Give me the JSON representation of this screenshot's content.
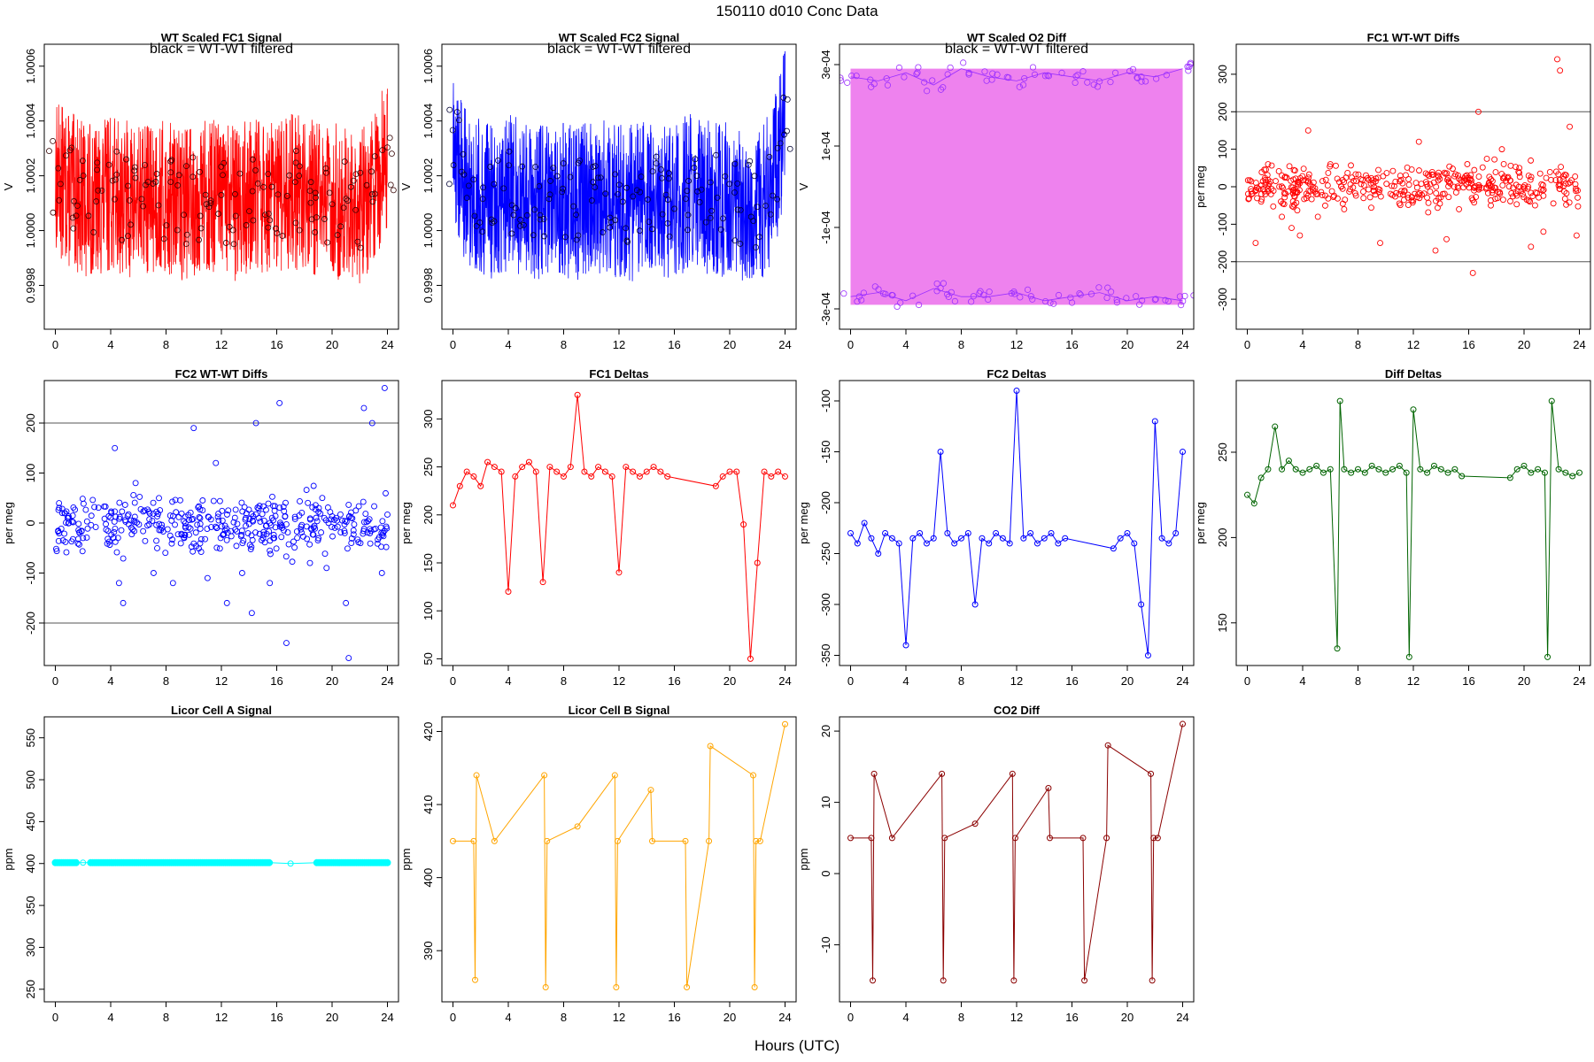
{
  "figure": {
    "title": "150110    d010    Conc Data",
    "xlabel": "Hours (UTC)"
  },
  "chart_data": [
    {
      "id": "fc1-signal",
      "type": "line",
      "title": "WT Scaled FC1 Signal",
      "ylabel": "V",
      "annotation": "black = WT-WT filtered",
      "color": "#ff0000",
      "marker_color": "#330000",
      "xlim": [
        -0.8,
        24.8
      ],
      "ylim": [
        0.99964,
        1.00068
      ],
      "xticks": [
        0,
        4,
        8,
        12,
        16,
        20,
        24
      ],
      "yticks": [
        0.9998,
        1.0,
        1.0002,
        1.0004,
        1.0006
      ],
      "yticklabels": [
        "0.9998",
        "1.0000",
        "1.0002",
        "1.0004",
        "1.0006"
      ],
      "series": [
        {
          "x": [
            0,
            1,
            2,
            3,
            4,
            5,
            6,
            7,
            8,
            9,
            10,
            11,
            12,
            13,
            14,
            15,
            16,
            17,
            18,
            19,
            20,
            21,
            22,
            23,
            24
          ],
          "y": [
            1.0002,
            1.00015,
            1.00012,
            1.0001,
            1.00014,
            1.00012,
            1.0001,
            1.00013,
            1.00011,
            1.0001,
            1.00012,
            1.00013,
            1.00011,
            1.0001,
            1.00012,
            1.00012,
            1.0001,
            1.00015,
            1.00013,
            1.00012,
            1.00011,
            1.0001,
            1.00008,
            1.00015,
            1.0003
          ]
        }
      ]
    },
    {
      "id": "fc2-signal",
      "type": "line",
      "title": "WT Scaled FC2 Signal",
      "ylabel": "V",
      "annotation": "black = WT-WT filtered",
      "color": "#0000ff",
      "marker_color": "#000033",
      "xlim": [
        -0.8,
        24.8
      ],
      "ylim": [
        0.99964,
        1.00068
      ],
      "xticks": [
        0,
        4,
        8,
        12,
        16,
        20,
        24
      ],
      "yticks": [
        0.9998,
        1.0,
        1.0002,
        1.0004,
        1.0006
      ],
      "yticklabels": [
        "0.9998",
        "1.0000",
        "1.0002",
        "1.0004",
        "1.0006"
      ],
      "series": [
        {
          "x": [
            0,
            1,
            2,
            3,
            4,
            5,
            6,
            7,
            8,
            9,
            10,
            11,
            12,
            13,
            14,
            15,
            16,
            17,
            18,
            19,
            20,
            21,
            22,
            23,
            24
          ],
          "y": [
            1.0003,
            1.00015,
            1.00012,
            1.0001,
            1.00014,
            1.00012,
            1.0001,
            1.00013,
            1.00011,
            1.0001,
            1.00012,
            1.00013,
            1.00011,
            1.0001,
            1.00012,
            1.00012,
            1.0001,
            1.00015,
            1.00013,
            1.00012,
            1.00011,
            1.0001,
            1.00008,
            1.00015,
            1.0004
          ]
        }
      ]
    },
    {
      "id": "o2-diff",
      "type": "line",
      "title": "WT Scaled O2 Diff",
      "ylabel": "V",
      "annotation": "black = WT-WT filtered",
      "color": "#ee82ee",
      "marker_color": "#9b30ff",
      "xlim": [
        -0.8,
        24.8
      ],
      "ylim": [
        -0.00035,
        0.00035
      ],
      "xticks": [
        0,
        4,
        8,
        12,
        16,
        20,
        24
      ],
      "yticks": [
        -0.0003,
        -0.0001,
        0.0001,
        0.0003
      ],
      "yticklabels": [
        "-3e-04",
        "-1e-04",
        "1e-04",
        "3e-04"
      ],
      "series": [
        {
          "name": "",
          "x": [
            0,
            2,
            4,
            6,
            8,
            10,
            12,
            14,
            16,
            18,
            20,
            22,
            24
          ],
          "y": [
            0.00027,
            0.00026,
            0.00028,
            0.00025,
            0.00029,
            0.00027,
            0.00026,
            0.00028,
            0.00027,
            0.00026,
            0.00028,
            0.00027,
            0.00029
          ]
        },
        {
          "name": "",
          "x": [
            0,
            2,
            4,
            6,
            8,
            10,
            12,
            14,
            16,
            18,
            20,
            22,
            24
          ],
          "y": [
            -0.00027,
            -0.00026,
            -0.00028,
            -0.00025,
            -0.00027,
            -0.00027,
            -0.00026,
            -0.00028,
            -0.00027,
            -0.00026,
            -0.00028,
            -0.00027,
            -0.00028
          ]
        }
      ]
    },
    {
      "id": "fc1-wtwt",
      "type": "scatter",
      "title": "FC1 WT-WT Diffs",
      "ylabel": "per meg",
      "color": "#ff0000",
      "xlim": [
        -0.8,
        24.8
      ],
      "ylim": [
        -380,
        380
      ],
      "xticks": [
        0,
        4,
        8,
        12,
        16,
        20,
        24
      ],
      "yticks": [
        -300,
        -200,
        -100,
        0,
        100,
        200,
        300
      ],
      "hlines": [
        -200,
        200
      ],
      "series": [
        {
          "x": [
            0.3,
            0.6,
            1.5,
            2.5,
            3.2,
            3.8,
            4.4,
            5.1,
            6.0,
            7.0,
            8.2,
            9.6,
            11.0,
            12.4,
            13.6,
            14.4,
            15.3,
            16.3,
            16.7,
            17.6,
            18.4,
            19.6,
            20.5,
            21.4,
            22.4,
            22.6,
            23.3,
            23.8
          ],
          "y": [
            -20,
            -150,
            60,
            30,
            -110,
            -130,
            150,
            -80,
            60,
            -60,
            20,
            -150,
            -20,
            120,
            -170,
            -140,
            -60,
            -230,
            200,
            -50,
            100,
            40,
            -160,
            -120,
            340,
            310,
            160,
            -130
          ]
        }
      ]
    },
    {
      "id": "fc2-wtwt",
      "type": "scatter",
      "title": "FC2 WT-WT Diffs",
      "ylabel": "per meg",
      "color": "#0000ff",
      "xlim": [
        -0.8,
        24.8
      ],
      "ylim": [
        -285,
        285
      ],
      "xticks": [
        0,
        4,
        8,
        12,
        16,
        20,
        24
      ],
      "yticks": [
        -200,
        -100,
        0,
        100,
        200
      ],
      "hlines": [
        -200,
        200
      ],
      "series": [
        {
          "x": [
            0.5,
            2.0,
            4.3,
            4.6,
            4.9,
            5.8,
            7.1,
            8.5,
            10.0,
            11.0,
            11.6,
            12.4,
            13.5,
            14.2,
            14.5,
            15.5,
            16.2,
            16.7,
            18.4,
            19.6,
            21.0,
            21.2,
            22.3,
            22.9,
            23.6,
            23.8
          ],
          "y": [
            20,
            -30,
            150,
            -120,
            -160,
            80,
            -100,
            -120,
            190,
            -110,
            120,
            -160,
            -100,
            -180,
            200,
            -120,
            240,
            -240,
            -80,
            -90,
            -160,
            -270,
            230,
            200,
            -100,
            270
          ]
        }
      ]
    },
    {
      "id": "fc1-deltas",
      "type": "line",
      "title": "FC1 Deltas",
      "ylabel": "per meg",
      "color": "#ff0000",
      "xlim": [
        -0.8,
        24.8
      ],
      "ylim": [
        43,
        340
      ],
      "xticks": [
        0,
        4,
        8,
        12,
        16,
        20,
        24
      ],
      "yticks": [
        50,
        100,
        150,
        200,
        250,
        300
      ],
      "series": [
        {
          "x": [
            0,
            0.5,
            1,
            1.5,
            2,
            2.5,
            3,
            3.5,
            4,
            4.5,
            5,
            5.5,
            6,
            6.5,
            7,
            7.5,
            8,
            8.5,
            9,
            9.5,
            10,
            10.5,
            11,
            11.5,
            12,
            12.5,
            13,
            13.5,
            14,
            14.5,
            15,
            15.5,
            19,
            19.5,
            20,
            20.5,
            21,
            21.5,
            22,
            22.5,
            23,
            23.5,
            24
          ],
          "y": [
            210,
            230,
            245,
            240,
            230,
            255,
            250,
            245,
            120,
            240,
            250,
            255,
            245,
            130,
            250,
            245,
            240,
            250,
            325,
            245,
            240,
            250,
            245,
            240,
            140,
            250,
            245,
            240,
            245,
            250,
            245,
            240,
            230,
            240,
            245,
            245,
            190,
            50,
            150,
            245,
            240,
            245,
            240
          ]
        }
      ]
    },
    {
      "id": "fc2-deltas",
      "type": "line",
      "title": "FC2 Deltas",
      "ylabel": "per meg",
      "color": "#0000ff",
      "xlim": [
        -0.8,
        24.8
      ],
      "ylim": [
        -360,
        -80
      ],
      "xticks": [
        0,
        4,
        8,
        12,
        16,
        20,
        24
      ],
      "yticks": [
        -350,
        -300,
        -250,
        -200,
        -150,
        -100
      ],
      "series": [
        {
          "x": [
            0,
            0.5,
            1,
            1.5,
            2,
            2.5,
            3,
            3.5,
            4,
            4.5,
            5,
            5.5,
            6,
            6.5,
            7,
            7.5,
            8,
            8.5,
            9,
            9.5,
            10,
            10.5,
            11,
            11.5,
            12,
            12.5,
            13,
            13.5,
            14,
            14.5,
            15,
            15.5,
            19,
            19.5,
            20,
            20.5,
            21,
            21.5,
            22,
            22.5,
            23,
            23.5,
            24
          ],
          "y": [
            -230,
            -240,
            -220,
            -235,
            -250,
            -230,
            -235,
            -240,
            -340,
            -235,
            -230,
            -240,
            -235,
            -150,
            -230,
            -240,
            -235,
            -230,
            -300,
            -235,
            -240,
            -230,
            -235,
            -240,
            -90,
            -235,
            -230,
            -240,
            -235,
            -230,
            -240,
            -235,
            -245,
            -235,
            -230,
            -240,
            -300,
            -350,
            -120,
            -235,
            -240,
            -230,
            -150
          ]
        }
      ]
    },
    {
      "id": "diff-deltas",
      "type": "line",
      "title": "Diff Deltas",
      "ylabel": "per meg",
      "color": "#006400",
      "xlim": [
        -0.8,
        24.8
      ],
      "ylim": [
        125,
        292
      ],
      "xticks": [
        0,
        4,
        8,
        12,
        16,
        20,
        24
      ],
      "yticks": [
        150,
        200,
        250
      ],
      "series": [
        {
          "x": [
            0,
            0.5,
            1,
            1.5,
            2,
            2.5,
            3,
            3.5,
            4,
            4.5,
            5,
            5.5,
            6,
            6.5,
            6.7,
            7,
            7.5,
            8,
            8.5,
            9,
            9.5,
            10,
            10.5,
            11,
            11.5,
            11.7,
            12,
            12.5,
            13,
            13.5,
            14,
            14.5,
            15,
            15.5,
            19,
            19.5,
            20,
            20.5,
            21,
            21.5,
            21.7,
            22,
            22.5,
            23,
            23.5,
            24
          ],
          "y": [
            225,
            220,
            235,
            240,
            265,
            240,
            245,
            240,
            238,
            240,
            242,
            238,
            240,
            135,
            280,
            240,
            238,
            240,
            238,
            242,
            240,
            238,
            240,
            242,
            238,
            130,
            275,
            240,
            238,
            242,
            240,
            238,
            240,
            236,
            235,
            240,
            242,
            238,
            240,
            238,
            130,
            280,
            240,
            238,
            236,
            238
          ]
        }
      ]
    },
    {
      "id": "licor-a",
      "type": "line",
      "title": "Licor Cell A Signal",
      "ylabel": "ppm",
      "color": "#00ffff",
      "xlim": [
        -0.8,
        24.8
      ],
      "ylim": [
        235,
        575
      ],
      "xticks": [
        0,
        4,
        8,
        12,
        16,
        20,
        24
      ],
      "yticks": [
        250,
        300,
        350,
        400,
        450,
        500,
        550
      ],
      "series": [
        {
          "x": [
            0,
            2,
            4,
            6,
            8,
            10,
            12,
            14,
            15.5,
            17,
            19,
            20,
            22,
            24
          ],
          "y": [
            401,
            401,
            401,
            401,
            401,
            401,
            401,
            401,
            401,
            400,
            401,
            401,
            401,
            401
          ]
        }
      ]
    },
    {
      "id": "licor-b",
      "type": "line",
      "title": "Licor Cell B Signal",
      "ylabel": "ppm",
      "color": "#ffa500",
      "xlim": [
        -0.8,
        24.8
      ],
      "ylim": [
        383,
        422
      ],
      "xticks": [
        0,
        4,
        8,
        12,
        16,
        20,
        24
      ],
      "yticks": [
        390,
        400,
        410,
        420
      ],
      "series": [
        {
          "x": [
            0,
            1.5,
            1.6,
            1.7,
            3,
            6.6,
            6.7,
            6.8,
            9,
            11.7,
            11.8,
            11.9,
            14.3,
            14.4,
            16.8,
            16.9,
            18.5,
            18.6,
            21.7,
            21.8,
            21.9,
            22.2,
            24
          ],
          "y": [
            405,
            405,
            386,
            414,
            405,
            414,
            385,
            405,
            407,
            414,
            385,
            405,
            412,
            405,
            405,
            385,
            405,
            418,
            414,
            385,
            405,
            405,
            421
          ]
        }
      ]
    },
    {
      "id": "co2-diff",
      "type": "line",
      "title": "CO2 Diff",
      "ylabel": "ppm",
      "color": "#8b0000",
      "xlim": [
        -0.8,
        24.8
      ],
      "ylim": [
        -18,
        22
      ],
      "xticks": [
        0,
        4,
        8,
        12,
        16,
        20,
        24
      ],
      "yticks": [
        -10,
        0,
        10,
        20
      ],
      "series": [
        {
          "x": [
            0,
            1.5,
            1.6,
            1.7,
            3,
            6.6,
            6.7,
            6.8,
            9,
            11.7,
            11.8,
            11.9,
            14.3,
            14.4,
            16.8,
            16.9,
            18.5,
            18.6,
            21.7,
            21.8,
            21.9,
            22.2,
            24
          ],
          "y": [
            5,
            5,
            -15,
            14,
            5,
            14,
            -15,
            5,
            7,
            14,
            -15,
            5,
            12,
            5,
            5,
            -15,
            5,
            18,
            14,
            -15,
            5,
            5,
            21
          ]
        }
      ]
    }
  ]
}
